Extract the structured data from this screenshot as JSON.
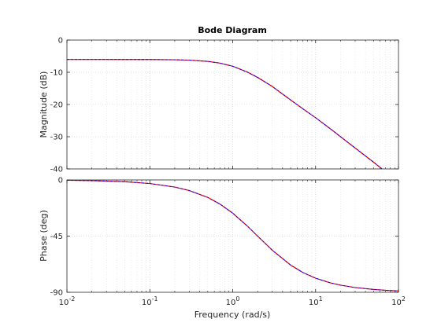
{
  "chart_data": {
    "type": "line",
    "title": "Bode Diagram",
    "xlabel": "Frequency  (rad/s)",
    "x_scale": "log",
    "xlim": [
      0.01,
      100
    ],
    "x_ticks": [
      {
        "value": 0.01,
        "base": "10",
        "exp": "-2"
      },
      {
        "value": 0.1,
        "base": "10",
        "exp": "-1"
      },
      {
        "value": 1,
        "base": "10",
        "exp": "0"
      },
      {
        "value": 10,
        "base": "10",
        "exp": "1"
      },
      {
        "value": 100,
        "base": "10",
        "exp": "2"
      }
    ],
    "grid": true,
    "panels": [
      {
        "ylabel": "Magnitude (dB)",
        "ylim": [
          -40,
          0
        ],
        "y_ticks": [
          0,
          -10,
          -20,
          -30,
          -40
        ],
        "y_tick_labels": [
          "0",
          "-10",
          "-20",
          "-30",
          "-40"
        ],
        "series": [
          {
            "color": "#ff0000",
            "x": [
              0.01,
              0.02,
              0.05,
              0.1,
              0.2,
              0.3,
              0.5,
              0.7,
              1,
              1.5,
              2,
              3,
              5,
              7,
              10,
              15,
              20,
              30,
              50,
              70,
              100
            ],
            "y": [
              -6.02,
              -6.02,
              -6.03,
              -6.04,
              -6.11,
              -6.23,
              -6.62,
              -7.15,
              -8.13,
              -9.93,
              -11.6,
              -14.4,
              -18.6,
              -21.3,
              -24.1,
              -27.5,
              -30.0,
              -33.5,
              -37.9,
              -40.9,
              -44.0
            ]
          },
          {
            "color": "#0000ff",
            "x": [
              0.01,
              0.02,
              0.05,
              0.1,
              0.2,
              0.3,
              0.5,
              0.7,
              1,
              1.5,
              2,
              3,
              5,
              7,
              10,
              15,
              20,
              30,
              50,
              70,
              100
            ],
            "y": [
              -6.02,
              -6.02,
              -6.03,
              -6.04,
              -6.11,
              -6.23,
              -6.62,
              -7.15,
              -8.13,
              -9.93,
              -11.6,
              -14.4,
              -18.6,
              -21.3,
              -24.1,
              -27.5,
              -30.0,
              -33.5,
              -37.9,
              -40.9,
              -44.0
            ]
          }
        ]
      },
      {
        "ylabel": "Phase (deg)",
        "ylim": [
          -90,
          0
        ],
        "y_ticks": [
          0,
          -45,
          -90
        ],
        "y_tick_labels": [
          "0",
          "-45",
          "-90"
        ],
        "series": [
          {
            "color": "#ff0000",
            "x": [
              0.01,
              0.02,
              0.05,
              0.1,
              0.2,
              0.3,
              0.5,
              0.7,
              1,
              1.5,
              2,
              3,
              5,
              7,
              10,
              15,
              20,
              30,
              50,
              70,
              100
            ],
            "y": [
              -0.29,
              -0.57,
              -1.43,
              -2.86,
              -5.71,
              -8.53,
              -14.0,
              -19.3,
              -26.6,
              -36.9,
              -45.0,
              -56.3,
              -68.2,
              -74.1,
              -78.7,
              -82.4,
              -84.3,
              -86.2,
              -87.7,
              -88.4,
              -88.9
            ]
          },
          {
            "color": "#0000ff",
            "x": [
              0.01,
              0.02,
              0.05,
              0.1,
              0.2,
              0.3,
              0.5,
              0.7,
              1,
              1.5,
              2,
              3,
              5,
              7,
              10,
              15,
              20,
              30,
              50,
              70,
              100
            ],
            "y": [
              -0.29,
              -0.57,
              -1.43,
              -2.86,
              -5.71,
              -8.53,
              -14.0,
              -19.3,
              -26.6,
              -36.9,
              -45.0,
              -56.3,
              -68.2,
              -74.1,
              -78.7,
              -82.4,
              -84.3,
              -86.2,
              -87.7,
              -88.4,
              -88.9
            ]
          }
        ]
      }
    ]
  }
}
